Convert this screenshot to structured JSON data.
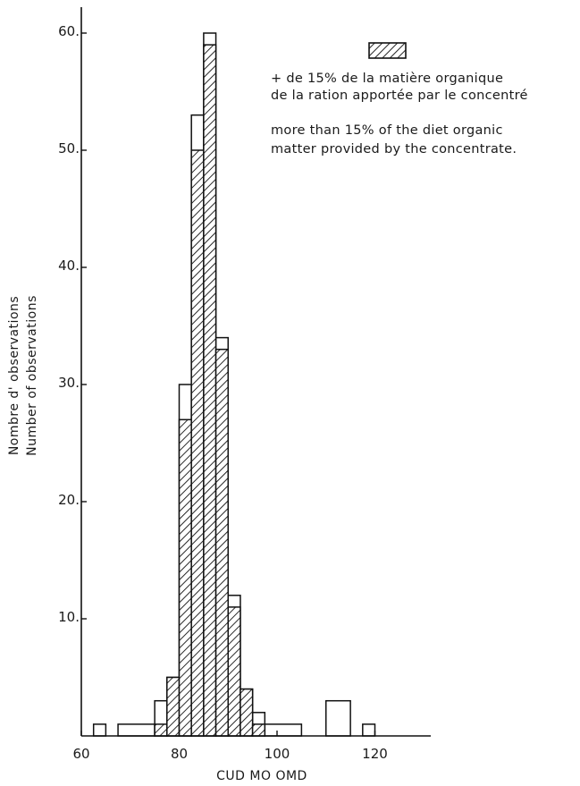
{
  "chart_data": {
    "type": "bar",
    "subtype": "histogram",
    "xlabel": "CUD  MO  OMD",
    "ylabel_lines": [
      "Nombre  d' observations",
      "Number  of  observations"
    ],
    "xlim": [
      60,
      132
    ],
    "ylim": [
      0,
      62
    ],
    "x_ticks": [
      60,
      80,
      100,
      120
    ],
    "y_ticks": [
      10,
      20,
      30,
      40,
      50,
      60
    ],
    "x_tick_labels": [
      "60",
      "80",
      "100",
      "120"
    ],
    "y_tick_labels": [
      "10.",
      "20.",
      "30.",
      "40.",
      "50.",
      "60."
    ],
    "bin_width": 2.5,
    "series": [
      {
        "role": "total",
        "fill": "none",
        "bins": [
          {
            "x0": 62.5,
            "x1": 65,
            "value": 1
          },
          {
            "x0": 67.5,
            "x1": 75,
            "value": 1
          },
          {
            "x0": 75,
            "x1": 77.5,
            "value": 3
          },
          {
            "x0": 77.5,
            "x1": 80,
            "value": 5
          },
          {
            "x0": 80,
            "x1": 82.5,
            "value": 30
          },
          {
            "x0": 82.5,
            "x1": 85,
            "value": 53
          },
          {
            "x0": 85,
            "x1": 87.5,
            "value": 60
          },
          {
            "x0": 87.5,
            "x1": 90,
            "value": 34
          },
          {
            "x0": 90,
            "x1": 92.5,
            "value": 12
          },
          {
            "x0": 92.5,
            "x1": 95,
            "value": 4
          },
          {
            "x0": 95,
            "x1": 97.5,
            "value": 2
          },
          {
            "x0": 97.5,
            "x1": 105,
            "value": 1
          },
          {
            "x0": 110,
            "x1": 115,
            "value": 3
          },
          {
            "x0": 117.5,
            "x1": 120,
            "value": 1
          }
        ]
      },
      {
        "role": "concentrate",
        "fill": "hatched",
        "bins": [
          {
            "x0": 75,
            "x1": 77.5,
            "value": 1
          },
          {
            "x0": 77.5,
            "x1": 80,
            "value": 5
          },
          {
            "x0": 80,
            "x1": 82.5,
            "value": 27
          },
          {
            "x0": 82.5,
            "x1": 85,
            "value": 50
          },
          {
            "x0": 85,
            "x1": 87.5,
            "value": 59
          },
          {
            "x0": 87.5,
            "x1": 90,
            "value": 33
          },
          {
            "x0": 90,
            "x1": 92.5,
            "value": 11
          },
          {
            "x0": 92.5,
            "x1": 95,
            "value": 4
          },
          {
            "x0": 95,
            "x1": 97.5,
            "value": 1
          }
        ]
      }
    ],
    "legend": {
      "swatch": "hatched",
      "placement": "top-right",
      "lines": [
        "+ de 15% de la matière organique",
        "de la ration apportée par  le concentré",
        "more  than 15% of the diet organic",
        "matter provided by the concentrate."
      ]
    },
    "grid": false
  }
}
